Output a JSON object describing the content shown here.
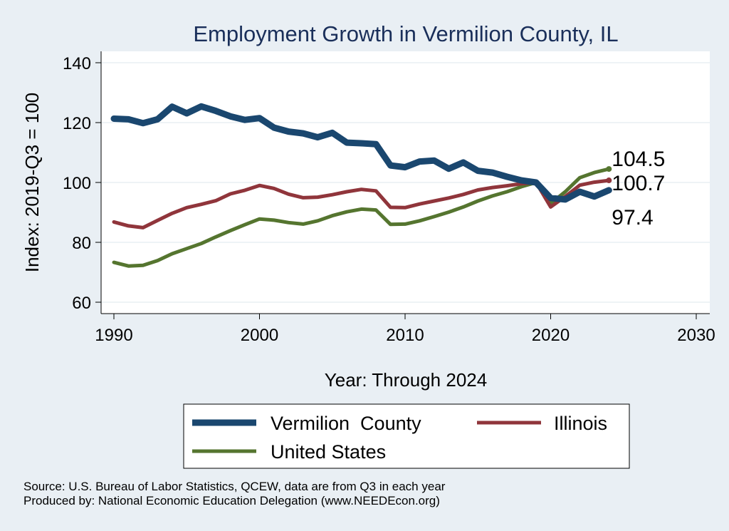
{
  "chart_data": {
    "type": "line",
    "title": "Employment Growth in Vermilion County, IL",
    "xlabel": "Year: Through 2024",
    "ylabel": "Index: 2019-Q3 = 100",
    "xlim": [
      1990,
      2030
    ],
    "ylim": [
      60,
      140
    ],
    "xticks": [
      "1990",
      "2000",
      "2010",
      "2020",
      "2030"
    ],
    "yticks": [
      "60",
      "80",
      "100",
      "120",
      "140"
    ],
    "grid": "horizontal",
    "legend_position": "bottom",
    "x": [
      1990,
      1991,
      1992,
      1993,
      1994,
      1995,
      1996,
      1997,
      1998,
      1999,
      2000,
      2001,
      2002,
      2003,
      2004,
      2005,
      2006,
      2007,
      2008,
      2009,
      2010,
      2011,
      2012,
      2013,
      2014,
      2015,
      2016,
      2017,
      2018,
      2019,
      2020,
      2021,
      2022,
      2023,
      2024
    ],
    "series": [
      {
        "name": "Vermilion  County",
        "color": "#1a476f",
        "values": [
          121.3,
          121.1,
          119.8,
          121.1,
          125.3,
          123.1,
          125.4,
          123.9,
          122.1,
          120.9,
          121.5,
          118.3,
          117.0,
          116.4,
          115.1,
          116.6,
          113.3,
          113.1,
          112.8,
          105.7,
          105.1,
          107.0,
          107.3,
          104.6,
          106.7,
          103.9,
          103.3,
          101.9,
          100.7,
          100.0,
          94.8,
          94.3,
          96.9,
          95.3,
          97.4
        ],
        "end_label": "97.4"
      },
      {
        "name": "Illinois",
        "color": "#90353b",
        "values": [
          86.8,
          85.5,
          84.9,
          87.3,
          89.7,
          91.6,
          92.7,
          93.9,
          96.2,
          97.4,
          99.0,
          98.0,
          96.1,
          94.9,
          95.1,
          95.9,
          96.9,
          97.7,
          97.2,
          91.7,
          91.6,
          92.8,
          93.8,
          94.8,
          96.0,
          97.5,
          98.3,
          98.9,
          99.6,
          100.0,
          91.8,
          95.3,
          99.1,
          100.1,
          100.7
        ],
        "end_label": "100.7"
      },
      {
        "name": "United States",
        "color": "#55752f",
        "values": [
          73.3,
          72.1,
          72.3,
          73.9,
          76.2,
          77.9,
          79.6,
          81.8,
          83.9,
          85.9,
          87.8,
          87.4,
          86.6,
          86.1,
          87.2,
          88.9,
          90.2,
          91.1,
          90.8,
          86.0,
          86.1,
          87.2,
          88.6,
          90.1,
          91.8,
          93.8,
          95.5,
          96.9,
          98.6,
          100.0,
          93.0,
          96.9,
          101.6,
          103.3,
          104.5
        ],
        "end_label": "104.5"
      }
    ]
  },
  "source_line": "Source: U.S. Bureau of Labor Statistics, QCEW, data are from Q3 in each year",
  "produced_line": "Produced by: National Economic Education Delegation (www.NEEDEcon.org)"
}
